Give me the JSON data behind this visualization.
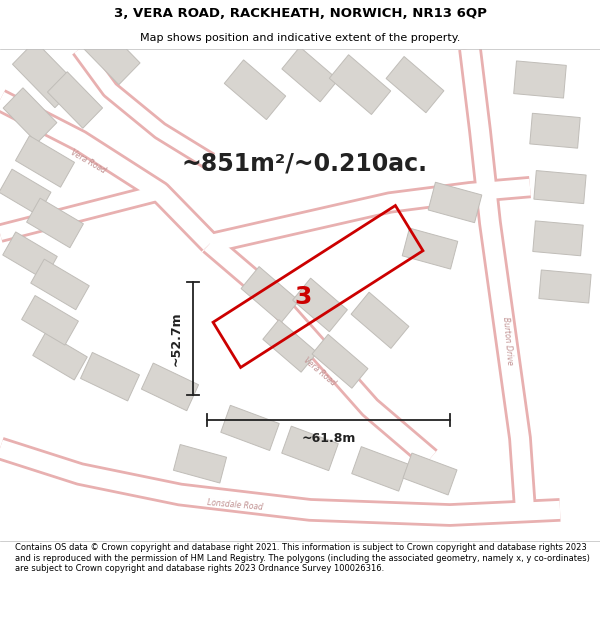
{
  "title": "3, VERA ROAD, RACKHEATH, NORWICH, NR13 6QP",
  "subtitle": "Map shows position and indicative extent of the property.",
  "area_text": "~851m²/~0.210ac.",
  "width_text": "~61.8m",
  "height_text": "~52.7m",
  "plot_number": "3",
  "footer_text": "Contains OS data © Crown copyright and database right 2021. This information is subject to Crown copyright and database rights 2023 and is reproduced with the permission of HM Land Registry. The polygons (including the associated geometry, namely x, y co-ordinates) are subject to Crown copyright and database rights 2023 Ordnance Survey 100026316.",
  "map_bg": "#f5f3f0",
  "building_fill": "#d8d5d0",
  "building_edge": "#c0bdb8",
  "road_fill": "#ffffff",
  "road_edge_color": "#e8b0b0",
  "plot_line_color": "#cc0000",
  "dim_line_color": "#222222",
  "label_road_color": "#c09090",
  "title_fontsize": 9.5,
  "subtitle_fontsize": 8,
  "area_fontsize": 17,
  "plot_label_fontsize": 18,
  "dim_fontsize": 9
}
